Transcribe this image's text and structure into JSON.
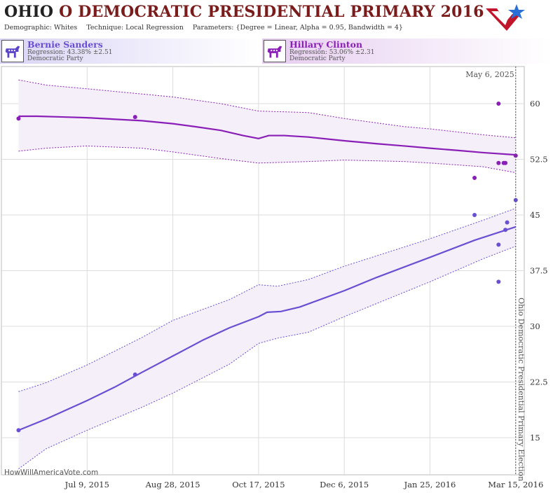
{
  "header": {
    "title_state": "OHIO",
    "title_rest": "O DEMOCRATIC PRESIDENTIAL PRIMARY 2016",
    "demographic": "Demographic: Whites",
    "technique": "Technique: Local Regression",
    "parameters": "Parameters: {Degree = Linear, Alpha = 0.95, Bandwidth = 4}"
  },
  "candidates": [
    {
      "name": "Bernie Sanders",
      "regression": "Regression: 43.38% ±2.51",
      "party": "Democratic Party",
      "color": "#6a4fd4"
    },
    {
      "name": "Hillary Clinton",
      "regression": "Regression: 53.06% ±2.31",
      "party": "Democratic Party",
      "color": "#8a1fb8"
    }
  ],
  "footer": {
    "site": "HowWillAmericaVote.com"
  },
  "colors": {
    "sanders": "#6a4fd4",
    "clinton": "#8a1fb8",
    "band": "#f4eff9",
    "grid": "#dddddd"
  },
  "chart_data": {
    "type": "line",
    "x_type": "date",
    "xlim": [
      "2015-05-20",
      "2016-03-20"
    ],
    "ylim": [
      10,
      65
    ],
    "x_ticks": [
      "2015-07-09",
      "2015-08-28",
      "2015-10-17",
      "2015-12-06",
      "2016-01-25",
      "2016-03-15"
    ],
    "x_tick_labels": [
      "Jul 9, 2015",
      "Aug 28, 2015",
      "Oct 17, 2015",
      "Dec 6, 2015",
      "Jan 25, 2016",
      "Mar 15, 2016"
    ],
    "y_ticks": [
      15,
      22.5,
      30,
      37.5,
      45,
      52.5,
      60
    ],
    "y_tick_labels": [
      "15",
      "22.5",
      "30",
      "37.5",
      "45",
      "52.5",
      "60"
    ],
    "event_line": {
      "date": "2016-03-15",
      "label": "Ohio Democratic Presidential Primary Election",
      "top_label": "May 6, 2025"
    },
    "series": [
      {
        "name": "Hillary Clinton",
        "color": "#8a1fb8",
        "trend": [
          {
            "x": "2015-05-30",
            "y": 58.3
          },
          {
            "x": "2015-06-10",
            "y": 58.3
          },
          {
            "x": "2015-06-25",
            "y": 58.2
          },
          {
            "x": "2015-07-09",
            "y": 58.1
          },
          {
            "x": "2015-07-25",
            "y": 57.9
          },
          {
            "x": "2015-08-10",
            "y": 57.7
          },
          {
            "x": "2015-08-28",
            "y": 57.3
          },
          {
            "x": "2015-09-10",
            "y": 56.9
          },
          {
            "x": "2015-09-25",
            "y": 56.4
          },
          {
            "x": "2015-10-08",
            "y": 55.7
          },
          {
            "x": "2015-10-17",
            "y": 55.3
          },
          {
            "x": "2015-10-23",
            "y": 55.7
          },
          {
            "x": "2015-11-01",
            "y": 55.7
          },
          {
            "x": "2015-11-15",
            "y": 55.5
          },
          {
            "x": "2015-12-06",
            "y": 55.0
          },
          {
            "x": "2015-12-25",
            "y": 54.6
          },
          {
            "x": "2016-01-10",
            "y": 54.3
          },
          {
            "x": "2016-01-25",
            "y": 54.0
          },
          {
            "x": "2016-02-10",
            "y": 53.7
          },
          {
            "x": "2016-02-25",
            "y": 53.4
          },
          {
            "x": "2016-03-15",
            "y": 53.1
          }
        ],
        "upper": [
          {
            "x": "2015-05-30",
            "y": 63.2
          },
          {
            "x": "2015-06-15",
            "y": 62.5
          },
          {
            "x": "2015-07-09",
            "y": 62.0
          },
          {
            "x": "2015-08-10",
            "y": 61.3
          },
          {
            "x": "2015-08-28",
            "y": 60.9
          },
          {
            "x": "2015-09-25",
            "y": 60.0
          },
          {
            "x": "2015-10-17",
            "y": 59.0
          },
          {
            "x": "2015-11-15",
            "y": 58.8
          },
          {
            "x": "2015-12-06",
            "y": 58.0
          },
          {
            "x": "2016-01-10",
            "y": 56.9
          },
          {
            "x": "2016-01-25",
            "y": 56.6
          },
          {
            "x": "2016-02-25",
            "y": 55.8
          },
          {
            "x": "2016-03-15",
            "y": 55.4
          }
        ],
        "lower": [
          {
            "x": "2015-05-30",
            "y": 53.6
          },
          {
            "x": "2015-06-15",
            "y": 54.0
          },
          {
            "x": "2015-07-09",
            "y": 54.3
          },
          {
            "x": "2015-08-10",
            "y": 54.0
          },
          {
            "x": "2015-08-28",
            "y": 53.5
          },
          {
            "x": "2015-09-25",
            "y": 52.6
          },
          {
            "x": "2015-10-17",
            "y": 52.0
          },
          {
            "x": "2015-11-15",
            "y": 52.2
          },
          {
            "x": "2015-12-06",
            "y": 52.4
          },
          {
            "x": "2016-01-10",
            "y": 52.2
          },
          {
            "x": "2016-01-25",
            "y": 52.0
          },
          {
            "x": "2016-02-25",
            "y": 51.5
          },
          {
            "x": "2016-03-15",
            "y": 50.7
          }
        ],
        "points": [
          {
            "x": "2015-05-30",
            "y": 58
          },
          {
            "x": "2015-08-06",
            "y": 58.2
          },
          {
            "x": "2016-02-20",
            "y": 50
          },
          {
            "x": "2016-03-05",
            "y": 60
          },
          {
            "x": "2016-03-05",
            "y": 52
          },
          {
            "x": "2016-03-08",
            "y": 52
          },
          {
            "x": "2016-03-09",
            "y": 52
          },
          {
            "x": "2016-03-15",
            "y": 53
          }
        ]
      },
      {
        "name": "Bernie Sanders",
        "color": "#6a4fd4",
        "trend": [
          {
            "x": "2015-05-30",
            "y": 16.0
          },
          {
            "x": "2015-06-15",
            "y": 17.5
          },
          {
            "x": "2015-07-09",
            "y": 20.0
          },
          {
            "x": "2015-07-25",
            "y": 21.8
          },
          {
            "x": "2015-08-10",
            "y": 23.8
          },
          {
            "x": "2015-08-28",
            "y": 26.0
          },
          {
            "x": "2015-09-15",
            "y": 28.2
          },
          {
            "x": "2015-09-30",
            "y": 29.8
          },
          {
            "x": "2015-10-17",
            "y": 31.3
          },
          {
            "x": "2015-10-22",
            "y": 31.9
          },
          {
            "x": "2015-10-30",
            "y": 32.0
          },
          {
            "x": "2015-11-10",
            "y": 32.6
          },
          {
            "x": "2015-12-06",
            "y": 34.8
          },
          {
            "x": "2015-12-25",
            "y": 36.6
          },
          {
            "x": "2016-01-25",
            "y": 39.3
          },
          {
            "x": "2016-02-20",
            "y": 41.6
          },
          {
            "x": "2016-03-15",
            "y": 43.4
          }
        ],
        "upper": [
          {
            "x": "2015-05-30",
            "y": 21.2
          },
          {
            "x": "2015-06-15",
            "y": 22.4
          },
          {
            "x": "2015-07-09",
            "y": 24.8
          },
          {
            "x": "2015-08-10",
            "y": 28.5
          },
          {
            "x": "2015-08-28",
            "y": 30.8
          },
          {
            "x": "2015-09-30",
            "y": 33.6
          },
          {
            "x": "2015-10-17",
            "y": 35.6
          },
          {
            "x": "2015-10-28",
            "y": 35.4
          },
          {
            "x": "2015-11-15",
            "y": 36.3
          },
          {
            "x": "2015-12-06",
            "y": 38.1
          },
          {
            "x": "2016-01-25",
            "y": 41.8
          },
          {
            "x": "2016-02-25",
            "y": 44.3
          },
          {
            "x": "2016-03-15",
            "y": 45.9
          }
        ],
        "lower": [
          {
            "x": "2015-05-30",
            "y": 10.8
          },
          {
            "x": "2015-06-15",
            "y": 13.5
          },
          {
            "x": "2015-07-09",
            "y": 16.0
          },
          {
            "x": "2015-08-10",
            "y": 19.1
          },
          {
            "x": "2015-08-28",
            "y": 21.0
          },
          {
            "x": "2015-09-30",
            "y": 24.9
          },
          {
            "x": "2015-10-17",
            "y": 27.7
          },
          {
            "x": "2015-10-28",
            "y": 28.4
          },
          {
            "x": "2015-11-15",
            "y": 29.2
          },
          {
            "x": "2015-12-06",
            "y": 31.3
          },
          {
            "x": "2016-01-25",
            "y": 36.0
          },
          {
            "x": "2016-02-25",
            "y": 39.1
          },
          {
            "x": "2016-03-15",
            "y": 40.8
          }
        ],
        "points": [
          {
            "x": "2015-05-30",
            "y": 16
          },
          {
            "x": "2015-08-06",
            "y": 23.5
          },
          {
            "x": "2016-02-20",
            "y": 45
          },
          {
            "x": "2016-03-05",
            "y": 41
          },
          {
            "x": "2016-03-05",
            "y": 36
          },
          {
            "x": "2016-03-09",
            "y": 43
          },
          {
            "x": "2016-03-10",
            "y": 44
          },
          {
            "x": "2016-03-15",
            "y": 47
          }
        ]
      }
    ]
  }
}
